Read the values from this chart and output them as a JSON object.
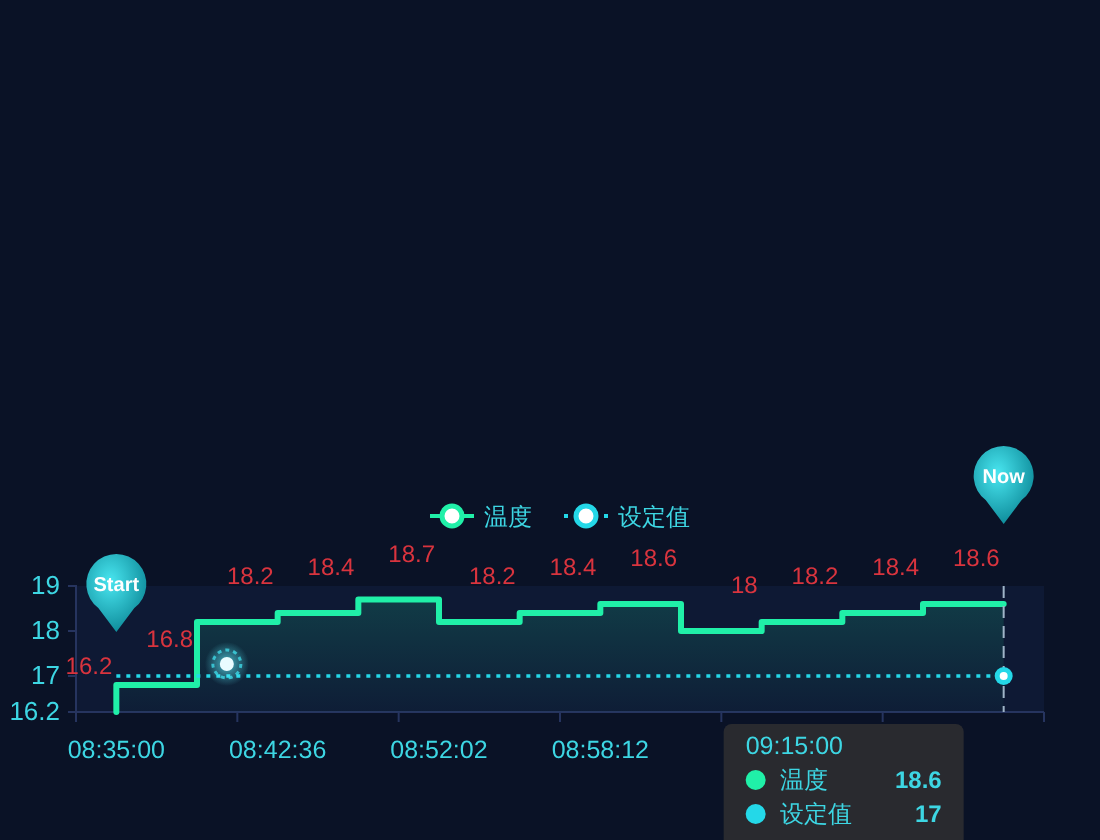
{
  "chart_data": {
    "type": "line",
    "categories": [
      "08:35:00",
      null,
      "08:42:36",
      null,
      "08:52:02",
      null,
      "08:58:12",
      null,
      null,
      null,
      null,
      null
    ],
    "series": [
      {
        "name": "温度",
        "type": "area",
        "color": "#20f0a8",
        "values": [
          16.2,
          16.8,
          18.2,
          18.4,
          18.7,
          18.2,
          18.4,
          18.6,
          18,
          18.2,
          18.4,
          18.6
        ],
        "value_labels": [
          "16.2",
          "16.8",
          "18.2",
          "18.4",
          "18.7",
          "18.2",
          "18.4",
          "18.6",
          "18",
          "18.2",
          "18.4",
          "18.6"
        ]
      },
      {
        "name": "设定值",
        "type": "line",
        "color": "#24d8e8",
        "line_style": "dotted",
        "values": [
          17,
          17,
          17,
          17,
          17,
          17,
          17,
          17,
          17,
          17,
          17,
          17
        ]
      }
    ],
    "ylim": [
      16.2,
      19
    ],
    "yticks": [
      16.2,
      17,
      18,
      19
    ],
    "legend": "top",
    "annotations": [
      "Start",
      "Now",
      "09:15:00",
      "温度 18.6",
      "设定值 17"
    ]
  }
}
